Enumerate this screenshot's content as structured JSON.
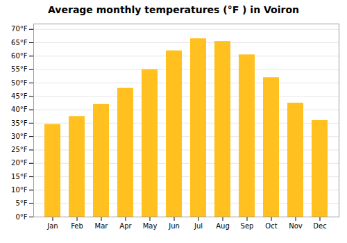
{
  "chart_data": {
    "type": "bar",
    "title": "Average monthly temperatures (°F ) in Voiron",
    "categories": [
      "Jan",
      "Feb",
      "Mar",
      "Apr",
      "May",
      "Jun",
      "Jul",
      "Aug",
      "Sep",
      "Oct",
      "Nov",
      "Dec"
    ],
    "values": [
      34.5,
      37.5,
      42,
      48,
      55,
      62,
      66.5,
      65.5,
      60.5,
      52,
      42.5,
      36
    ],
    "color": "#FFC020",
    "ylim": [
      0,
      72
    ],
    "yticks": [
      {
        "value": 0,
        "label": "0°F"
      },
      {
        "value": 5,
        "label": "5°F"
      },
      {
        "value": 10,
        "label": "10°F"
      },
      {
        "value": 15,
        "label": "15°F"
      },
      {
        "value": 20,
        "label": "20°F"
      },
      {
        "value": 25,
        "label": "25°F"
      },
      {
        "value": 30,
        "label": "30°F"
      },
      {
        "value": 35,
        "label": "35°F"
      },
      {
        "value": 40,
        "label": "40°F"
      },
      {
        "value": 45,
        "label": "45°F"
      },
      {
        "value": 50,
        "label": "50°F"
      },
      {
        "value": 55,
        "label": "55°F"
      },
      {
        "value": 60,
        "label": "60°F"
      },
      {
        "value": 65,
        "label": "65°F"
      },
      {
        "value": 70,
        "label": "70°F"
      }
    ],
    "grid": true
  }
}
